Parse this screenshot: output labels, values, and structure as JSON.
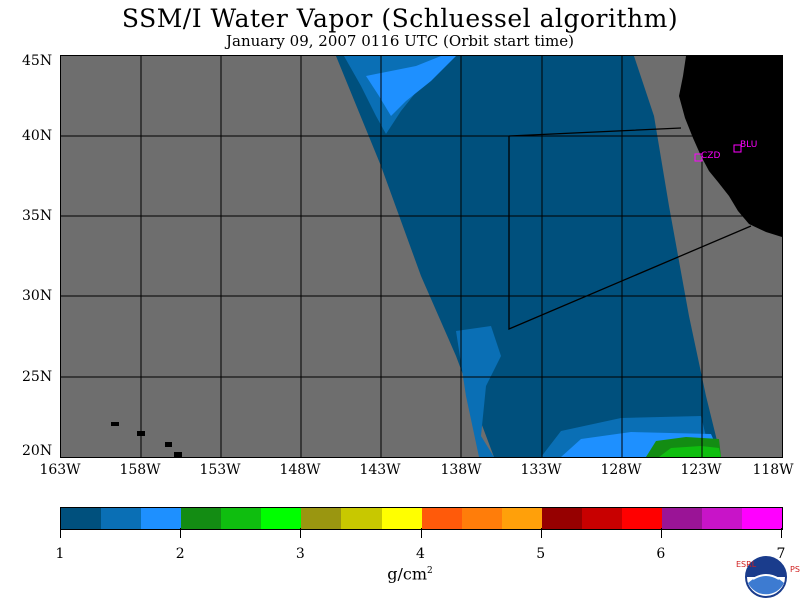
{
  "title": "SSM/I Water Vapor (Schluessel algorithm)",
  "subtitle": "January 09, 2007  0116 UTC  (Orbit start time)",
  "map": {
    "lat_labels": [
      "45N",
      "40N",
      "35N",
      "30N",
      "25N",
      "20N"
    ],
    "lon_labels": [
      "163W",
      "158W",
      "153W",
      "148W",
      "143W",
      "138W",
      "133W",
      "128W",
      "123W",
      "118W"
    ],
    "stations": [
      {
        "name": "CZD",
        "color": "#ff00ff"
      },
      {
        "name": "BLU",
        "color": "#ff00ff"
      }
    ],
    "colors": {
      "no_data": "#6e6e6e",
      "land": "#000000",
      "grid": "#000000",
      "dominant_value": "#005a8c"
    }
  },
  "colorbar": {
    "colors": [
      "#00507d",
      "#0a6fb5",
      "#1e90ff",
      "#138c13",
      "#0fbe0f",
      "#00ff00",
      "#9a9610",
      "#c8c800",
      "#ffff00",
      "#ff5a0a",
      "#ff7d0a",
      "#ffa00a",
      "#960000",
      "#c80000",
      "#ff0000",
      "#9a1496",
      "#c814c8",
      "#ff00ff"
    ],
    "ticks": [
      "1",
      "2",
      "3",
      "4",
      "5",
      "6",
      "7"
    ],
    "unit": "g/cm",
    "unit_sup": "2"
  },
  "logo": {
    "agency": "NOAA",
    "left_letters": "ESRL",
    "right_letters": "PSD"
  }
}
